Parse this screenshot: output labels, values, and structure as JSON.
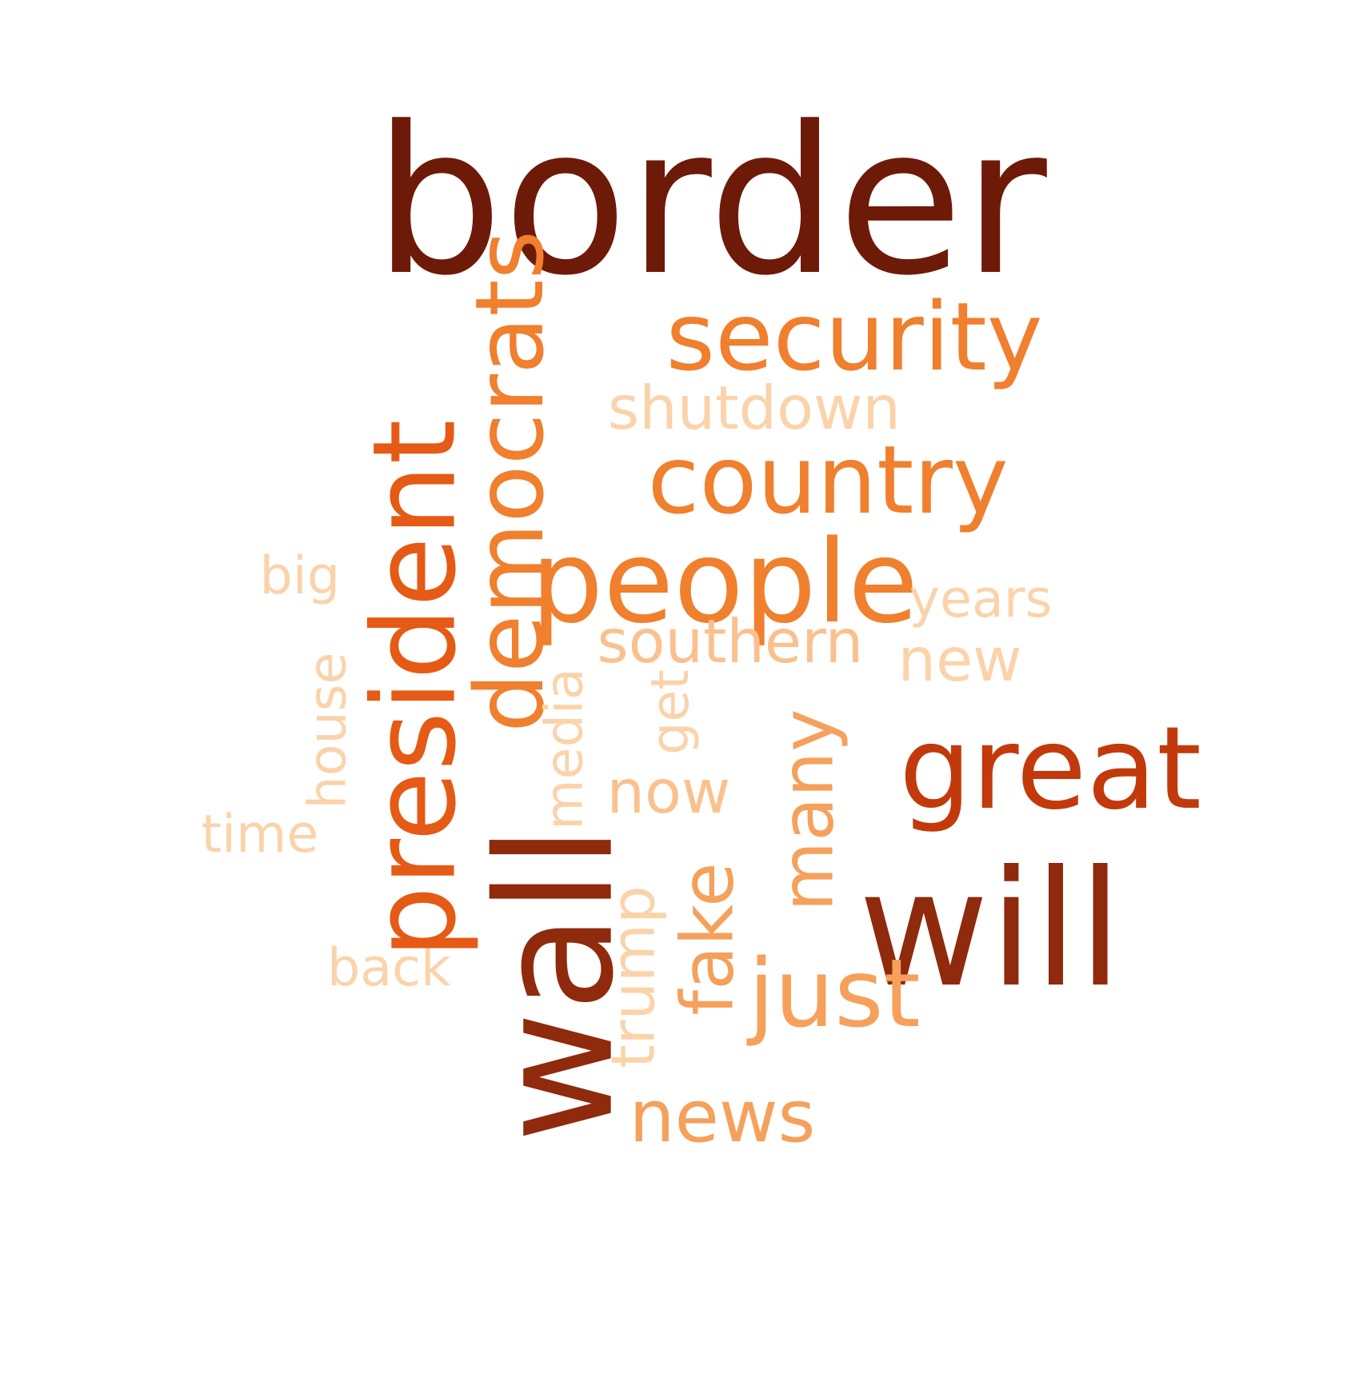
{
  "colors": {
    "background": "#ffffff",
    "darkest": "#6e1a08",
    "dark": "#8f2a0c",
    "rust": "#c23a0c",
    "orange": "#e55a14",
    "mid_orange": "#f07f2e",
    "light_orange": "#f5a15c",
    "pale": "#fac18f",
    "palest": "#fbd3aa"
  },
  "words": [
    {
      "text": "border",
      "color": "#6e1a08",
      "orientation": "horizontal"
    },
    {
      "text": "security",
      "color": "#f07f2e",
      "orientation": "horizontal"
    },
    {
      "text": "shutdown",
      "color": "#fbd3aa",
      "orientation": "horizontal"
    },
    {
      "text": "country",
      "color": "#f07f2e",
      "orientation": "horizontal"
    },
    {
      "text": "people",
      "color": "#f07f2e",
      "orientation": "horizontal"
    },
    {
      "text": "years",
      "color": "#fbd3aa",
      "orientation": "horizontal"
    },
    {
      "text": "big",
      "color": "#fbd3aa",
      "orientation": "horizontal"
    },
    {
      "text": "southern",
      "color": "#fac18f",
      "orientation": "horizontal"
    },
    {
      "text": "new",
      "color": "#fbd3aa",
      "orientation": "horizontal"
    },
    {
      "text": "great",
      "color": "#c23a0c",
      "orientation": "horizontal"
    },
    {
      "text": "now",
      "color": "#fac18f",
      "orientation": "horizontal"
    },
    {
      "text": "will",
      "color": "#8f2a0c",
      "orientation": "horizontal"
    },
    {
      "text": "time",
      "color": "#fbd3aa",
      "orientation": "horizontal"
    },
    {
      "text": "back",
      "color": "#fbd3aa",
      "orientation": "horizontal"
    },
    {
      "text": "just",
      "color": "#f5a15c",
      "orientation": "horizontal"
    },
    {
      "text": "news",
      "color": "#f5a15c",
      "orientation": "horizontal"
    },
    {
      "text": "democrats",
      "color": "#f07f2e",
      "orientation": "vertical"
    },
    {
      "text": "president",
      "color": "#e55a14",
      "orientation": "vertical"
    },
    {
      "text": "wall",
      "color": "#8f2a0c",
      "orientation": "vertical"
    },
    {
      "text": "house",
      "color": "#fbd3aa",
      "orientation": "vertical"
    },
    {
      "text": "media",
      "color": "#fbd3aa",
      "orientation": "vertical"
    },
    {
      "text": "get",
      "color": "#fbd3aa",
      "orientation": "vertical"
    },
    {
      "text": "many",
      "color": "#f5a15c",
      "orientation": "vertical"
    },
    {
      "text": "trump",
      "color": "#fbd3aa",
      "orientation": "vertical"
    },
    {
      "text": "fake",
      "color": "#f5a15c",
      "orientation": "vertical"
    }
  ]
}
